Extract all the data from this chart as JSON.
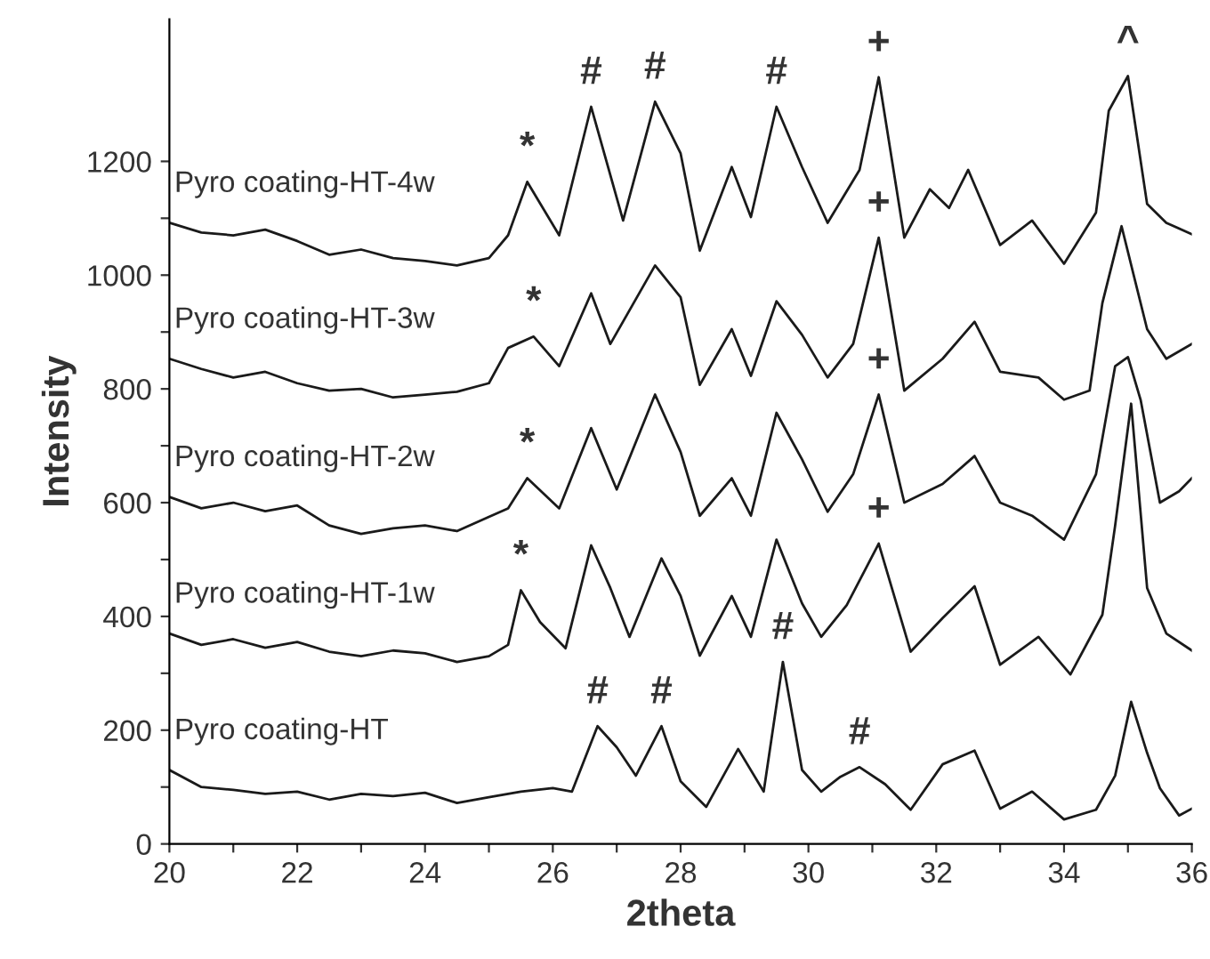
{
  "chart_data": {
    "type": "line",
    "xlabel": "2theta",
    "ylabel": "Intensity",
    "xlim": [
      20,
      36
    ],
    "ylim": [
      0,
      1450
    ],
    "xticks": [
      20,
      {
        "value": 21,
        "label": null
      },
      22,
      {
        "value": 23,
        "label": null
      },
      24,
      {
        "value": 25,
        "label": null
      },
      26,
      {
        "value": 27,
        "label": null
      },
      28,
      {
        "value": 29,
        "label": null
      },
      30,
      {
        "value": 31,
        "label": null
      },
      32,
      {
        "value": 33,
        "label": null
      },
      34,
      {
        "value": 35,
        "label": null
      },
      36
    ],
    "yticks": [
      0,
      {
        "value": 100,
        "label": null
      },
      200,
      {
        "value": 300,
        "label": null
      },
      400,
      {
        "value": 500,
        "label": null
      },
      600,
      {
        "value": 700,
        "label": null
      },
      800,
      {
        "value": 900,
        "label": null
      },
      1000,
      {
        "value": 1100,
        "label": null
      },
      1200
    ],
    "grid": false,
    "legend": false,
    "marker": "none",
    "line_style": "solid",
    "series": [
      {
        "name": "Pyro coating-HT",
        "color": "#1a1a1a",
        "x": [
          20,
          20.5,
          21,
          21.5,
          22,
          22.5,
          23,
          23.5,
          24,
          24.5,
          25,
          25.5,
          26,
          26.3,
          26.7,
          27.0,
          27.3,
          27.7,
          28.0,
          28.4,
          28.9,
          29.3,
          29.6,
          29.9,
          30.2,
          30.5,
          30.8,
          31.2,
          31.6,
          32.1,
          32.6,
          33.0,
          33.5,
          34.0,
          34.5,
          34.8,
          35.05,
          35.3,
          35.5,
          35.8,
          36
        ],
        "values": [
          130,
          100,
          95,
          88,
          92,
          78,
          88,
          84,
          90,
          72,
          82,
          92,
          98,
          92,
          207,
          170,
          120,
          207,
          110,
          65,
          167,
          92,
          320,
          130,
          92,
          118,
          135,
          105,
          60,
          140,
          164,
          62,
          92,
          43,
          60,
          120,
          250,
          160,
          98,
          50,
          62
        ]
      },
      {
        "name": "Pyro coating-HT-1w",
        "color": "#1a1a1a",
        "x": [
          20,
          20.5,
          21,
          21.5,
          22,
          22.5,
          23,
          23.5,
          24,
          24.5,
          25,
          25.3,
          25.5,
          25.8,
          26.2,
          26.6,
          26.9,
          27.2,
          27.7,
          28.0,
          28.3,
          28.8,
          29.1,
          29.5,
          29.9,
          30.2,
          30.6,
          31.1,
          31.6,
          32.1,
          32.6,
          33.0,
          33.6,
          34.1,
          34.6,
          34.8,
          35.05,
          35.3,
          35.6,
          36
        ],
        "values": [
          370,
          350,
          360,
          345,
          355,
          338,
          330,
          340,
          335,
          320,
          330,
          350,
          446,
          390,
          344,
          525,
          450,
          364,
          502,
          436,
          331,
          436,
          364,
          535,
          423,
          364,
          420,
          528,
          338,
          397,
          453,
          315,
          364,
          298,
          403,
          560,
          774,
          450,
          370,
          340
        ]
      },
      {
        "name": "Pyro coating-HT-2w",
        "color": "#1a1a1a",
        "x": [
          20,
          20.5,
          21,
          21.5,
          22,
          22.5,
          23,
          23.5,
          24,
          24.5,
          25,
          25.3,
          25.6,
          26.1,
          26.6,
          27.0,
          27.6,
          28.0,
          28.3,
          28.8,
          29.1,
          29.5,
          29.9,
          30.3,
          30.7,
          31.1,
          31.5,
          32.1,
          32.6,
          33.0,
          33.5,
          34.0,
          34.5,
          34.8,
          35.0,
          35.2,
          35.5,
          35.8,
          36
        ],
        "values": [
          610,
          590,
          600,
          585,
          595,
          560,
          545,
          555,
          560,
          550,
          575,
          590,
          643,
          590,
          731,
          623,
          790,
          689,
          577,
          643,
          577,
          758,
          676,
          584,
          650,
          790,
          600,
          633,
          682,
          600,
          577,
          535,
          650,
          840,
          856,
          780,
          600,
          620,
          643
        ]
      },
      {
        "name": "Pyro coating-HT-3w",
        "color": "#1a1a1a",
        "x": [
          20,
          20.5,
          21,
          21.5,
          22,
          22.5,
          23,
          23.5,
          24,
          24.5,
          25,
          25.3,
          25.7,
          26.1,
          26.6,
          26.9,
          27.6,
          28.0,
          28.3,
          28.8,
          29.1,
          29.5,
          29.9,
          30.3,
          30.7,
          31.1,
          31.5,
          32.1,
          32.6,
          33.0,
          33.6,
          34.0,
          34.4,
          34.6,
          34.9,
          35.3,
          35.6,
          36
        ],
        "values": [
          853,
          835,
          820,
          830,
          810,
          797,
          800,
          785,
          790,
          795,
          810,
          872,
          892,
          840,
          968,
          879,
          1017,
          961,
          807,
          905,
          823,
          954,
          895,
          820,
          879,
          1066,
          797,
          853,
          918,
          830,
          820,
          781,
          797,
          951,
          1086,
          905,
          853,
          879
        ]
      },
      {
        "name": "Pyro coating-HT-4w",
        "color": "#1a1a1a",
        "x": [
          20,
          20.5,
          21,
          21.5,
          22,
          22.5,
          23,
          23.5,
          24,
          24.5,
          25,
          25.3,
          25.6,
          26.1,
          26.6,
          27.1,
          27.6,
          28.0,
          28.3,
          28.8,
          29.1,
          29.5,
          29.9,
          30.3,
          30.8,
          31.1,
          31.5,
          31.9,
          32.2,
          32.5,
          33.0,
          33.5,
          34.0,
          34.5,
          34.7,
          35.0,
          35.3,
          35.6,
          36
        ],
        "values": [
          1092,
          1075,
          1070,
          1080,
          1060,
          1036,
          1045,
          1030,
          1025,
          1017,
          1030,
          1070,
          1164,
          1070,
          1296,
          1096,
          1305,
          1214,
          1043,
          1190,
          1102,
          1296,
          1190,
          1092,
          1185,
          1348,
          1066,
          1151,
          1118,
          1185,
          1053,
          1096,
          1020,
          1110,
          1289,
          1350,
          1125,
          1092,
          1072
        ]
      }
    ],
    "annotations": [
      {
        "text": "*",
        "x": 25.6,
        "y": 1164
      },
      {
        "text": "#",
        "x": 26.6,
        "y": 1296
      },
      {
        "text": "#",
        "x": 27.6,
        "y": 1305
      },
      {
        "text": "#",
        "x": 29.5,
        "y": 1296
      },
      {
        "text": "+",
        "x": 31.1,
        "y": 1348
      },
      {
        "text": "^",
        "x": 35.0,
        "y": 1350
      },
      {
        "text": "*",
        "x": 25.7,
        "y": 892
      },
      {
        "text": "+",
        "x": 31.1,
        "y": 1066
      },
      {
        "text": "*",
        "x": 25.6,
        "y": 643
      },
      {
        "text": "+",
        "x": 31.1,
        "y": 790
      },
      {
        "text": "*",
        "x": 25.5,
        "y": 446
      },
      {
        "text": "+",
        "x": 31.1,
        "y": 528
      },
      {
        "text": "#",
        "x": 26.7,
        "y": 207
      },
      {
        "text": "#",
        "x": 27.7,
        "y": 207
      },
      {
        "text": "#",
        "x": 29.6,
        "y": 320
      },
      {
        "text": "#",
        "x": 30.8,
        "y": 135
      }
    ]
  }
}
